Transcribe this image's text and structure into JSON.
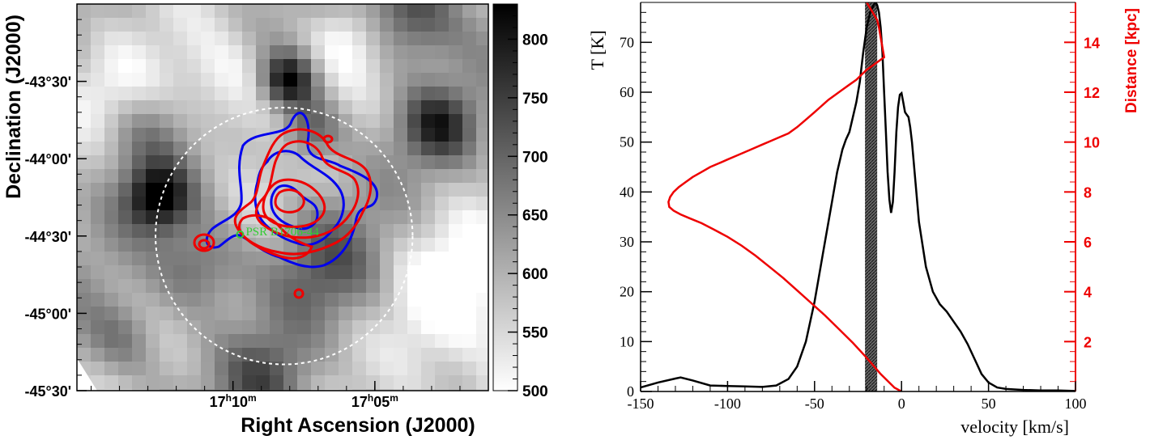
{
  "chart_data": [
    {
      "type": "heatmap",
      "xlabel": "Right Ascension (J2000)",
      "ylabel": "Declination (J2000)",
      "x_ticks": [
        {
          "label": "17h10m",
          "h": "17",
          "m": "10",
          "ra_min": 10
        },
        {
          "label": "17h05m",
          "h": "17",
          "m": "05",
          "ra_min": 5
        }
      ],
      "x_range_ra_min": [
        15.5,
        1.0
      ],
      "y_ticks": [
        {
          "label": "-43°30'",
          "dec": -43.5
        },
        {
          "label": "-44°00'",
          "dec": -44.0
        },
        {
          "label": "-44°30'",
          "dec": -44.5
        },
        {
          "label": "-45°00'",
          "dec": -45.0
        },
        {
          "label": "-45°30'",
          "dec": -45.5
        }
      ],
      "y_range_dec": [
        -45.5,
        -43.0
      ],
      "colorbar": {
        "min": 500,
        "max": 830,
        "ticks": [
          "800",
          "750",
          "700",
          "650",
          "600",
          "550",
          "500"
        ],
        "tick_values": [
          800,
          750,
          700,
          650,
          600,
          550,
          500
        ]
      },
      "source_label": "PSR B1706-44",
      "source_position": {
        "ra_min": 9.75,
        "dec": -44.49
      },
      "circle": {
        "center_ra_min": 8.2,
        "center_dec": -44.5,
        "radius_deg": 0.83,
        "style": "dashed white"
      },
      "contour_colors": {
        "hess": "#0000ee",
        "fermi": "#ee0000",
        "source": "#33cc33"
      }
    },
    {
      "type": "line",
      "xlabel": "velocity [km/s]",
      "ylabel": "T [K]",
      "ylabel_right": "Distance [kpc]",
      "xlim": [
        -150,
        100
      ],
      "ylim": [
        0,
        78
      ],
      "ylim_right": [
        0,
        15.6
      ],
      "x_ticks": [
        -150,
        -100,
        -50,
        0,
        50,
        100
      ],
      "y_ticks": [
        0,
        10,
        20,
        30,
        40,
        50,
        60,
        70
      ],
      "y_ticks_right": [
        2,
        4,
        6,
        8,
        10,
        12,
        14
      ],
      "shaded_band": [
        -21,
        -14
      ],
      "series": [
        {
          "role": "temperature",
          "axis": "left",
          "color": "#000000",
          "x": [
            -150,
            -140,
            -130,
            -127,
            -120,
            -110,
            -100,
            -90,
            -80,
            -72,
            -65,
            -60,
            -55,
            -50,
            -45,
            -40,
            -37,
            -34,
            -32,
            -30,
            -28,
            -26,
            -24,
            -22,
            -20,
            -18,
            -16,
            -15,
            -14,
            -13,
            -12,
            -11,
            -10,
            -9,
            -8,
            -7,
            -6,
            -5,
            -4,
            -3,
            -2,
            -1,
            0,
            1,
            2,
            3,
            4,
            5,
            6,
            8,
            10,
            14,
            18,
            22,
            26,
            30,
            34,
            38,
            42,
            46,
            50,
            55,
            60,
            70,
            80,
            90,
            100
          ],
          "y": [
            0.8,
            1.8,
            2.6,
            2.8,
            2.2,
            1.2,
            1.1,
            1.0,
            0.9,
            1.2,
            2.5,
            5.0,
            10.0,
            18.0,
            28.0,
            38.0,
            44.0,
            48.5,
            50.5,
            52.0,
            55.0,
            58.0,
            62.0,
            68.0,
            73.0,
            76.0,
            77.5,
            78.0,
            77.5,
            76.0,
            73.0,
            68.0,
            60.0,
            52.0,
            44.0,
            38.5,
            35.8,
            38.0,
            44.0,
            52.0,
            57.0,
            59.5,
            59.8,
            58.0,
            56.0,
            55.5,
            55.0,
            53.0,
            50.0,
            42.0,
            34.0,
            25.0,
            20.0,
            17.5,
            16.0,
            14.0,
            12.0,
            9.5,
            6.5,
            3.5,
            1.8,
            0.8,
            0.5,
            0.3,
            0.2,
            0.2,
            0.1
          ]
        },
        {
          "role": "distance",
          "axis": "right",
          "color": "#ee0000",
          "x": [
            -20,
            -14,
            -13,
            -12,
            -11,
            -10,
            -12,
            -14,
            -16,
            -18,
            -20,
            -23,
            -26,
            -30,
            -34,
            -38,
            -42,
            -46,
            -50,
            -55,
            -60,
            -65,
            -70,
            -75,
            -80,
            -85,
            -90,
            -95,
            -100,
            -105,
            -110,
            -115,
            -120,
            -124,
            -128,
            -131,
            -133,
            -134,
            -133.5,
            -131,
            -127,
            -122,
            -115,
            -108,
            -100,
            -92,
            -84,
            -76,
            -68,
            -60,
            -52,
            -44,
            -36,
            -28,
            -20,
            -12,
            -4,
            0
          ],
          "y": [
            15.6,
            14.9,
            14.6,
            14.2,
            13.8,
            13.4,
            13.3,
            13.2,
            13.1,
            13.0,
            12.9,
            12.7,
            12.5,
            12.3,
            12.1,
            11.9,
            11.7,
            11.45,
            11.2,
            10.9,
            10.6,
            10.35,
            10.2,
            10.05,
            9.9,
            9.75,
            9.6,
            9.45,
            9.3,
            9.15,
            9.0,
            8.8,
            8.6,
            8.4,
            8.2,
            8.0,
            7.8,
            7.6,
            7.4,
            7.25,
            7.1,
            6.95,
            6.75,
            6.5,
            6.2,
            5.85,
            5.45,
            5.0,
            4.55,
            4.05,
            3.55,
            3.05,
            2.5,
            1.95,
            1.35,
            0.7,
            0.15,
            0.0
          ]
        }
      ]
    }
  ]
}
